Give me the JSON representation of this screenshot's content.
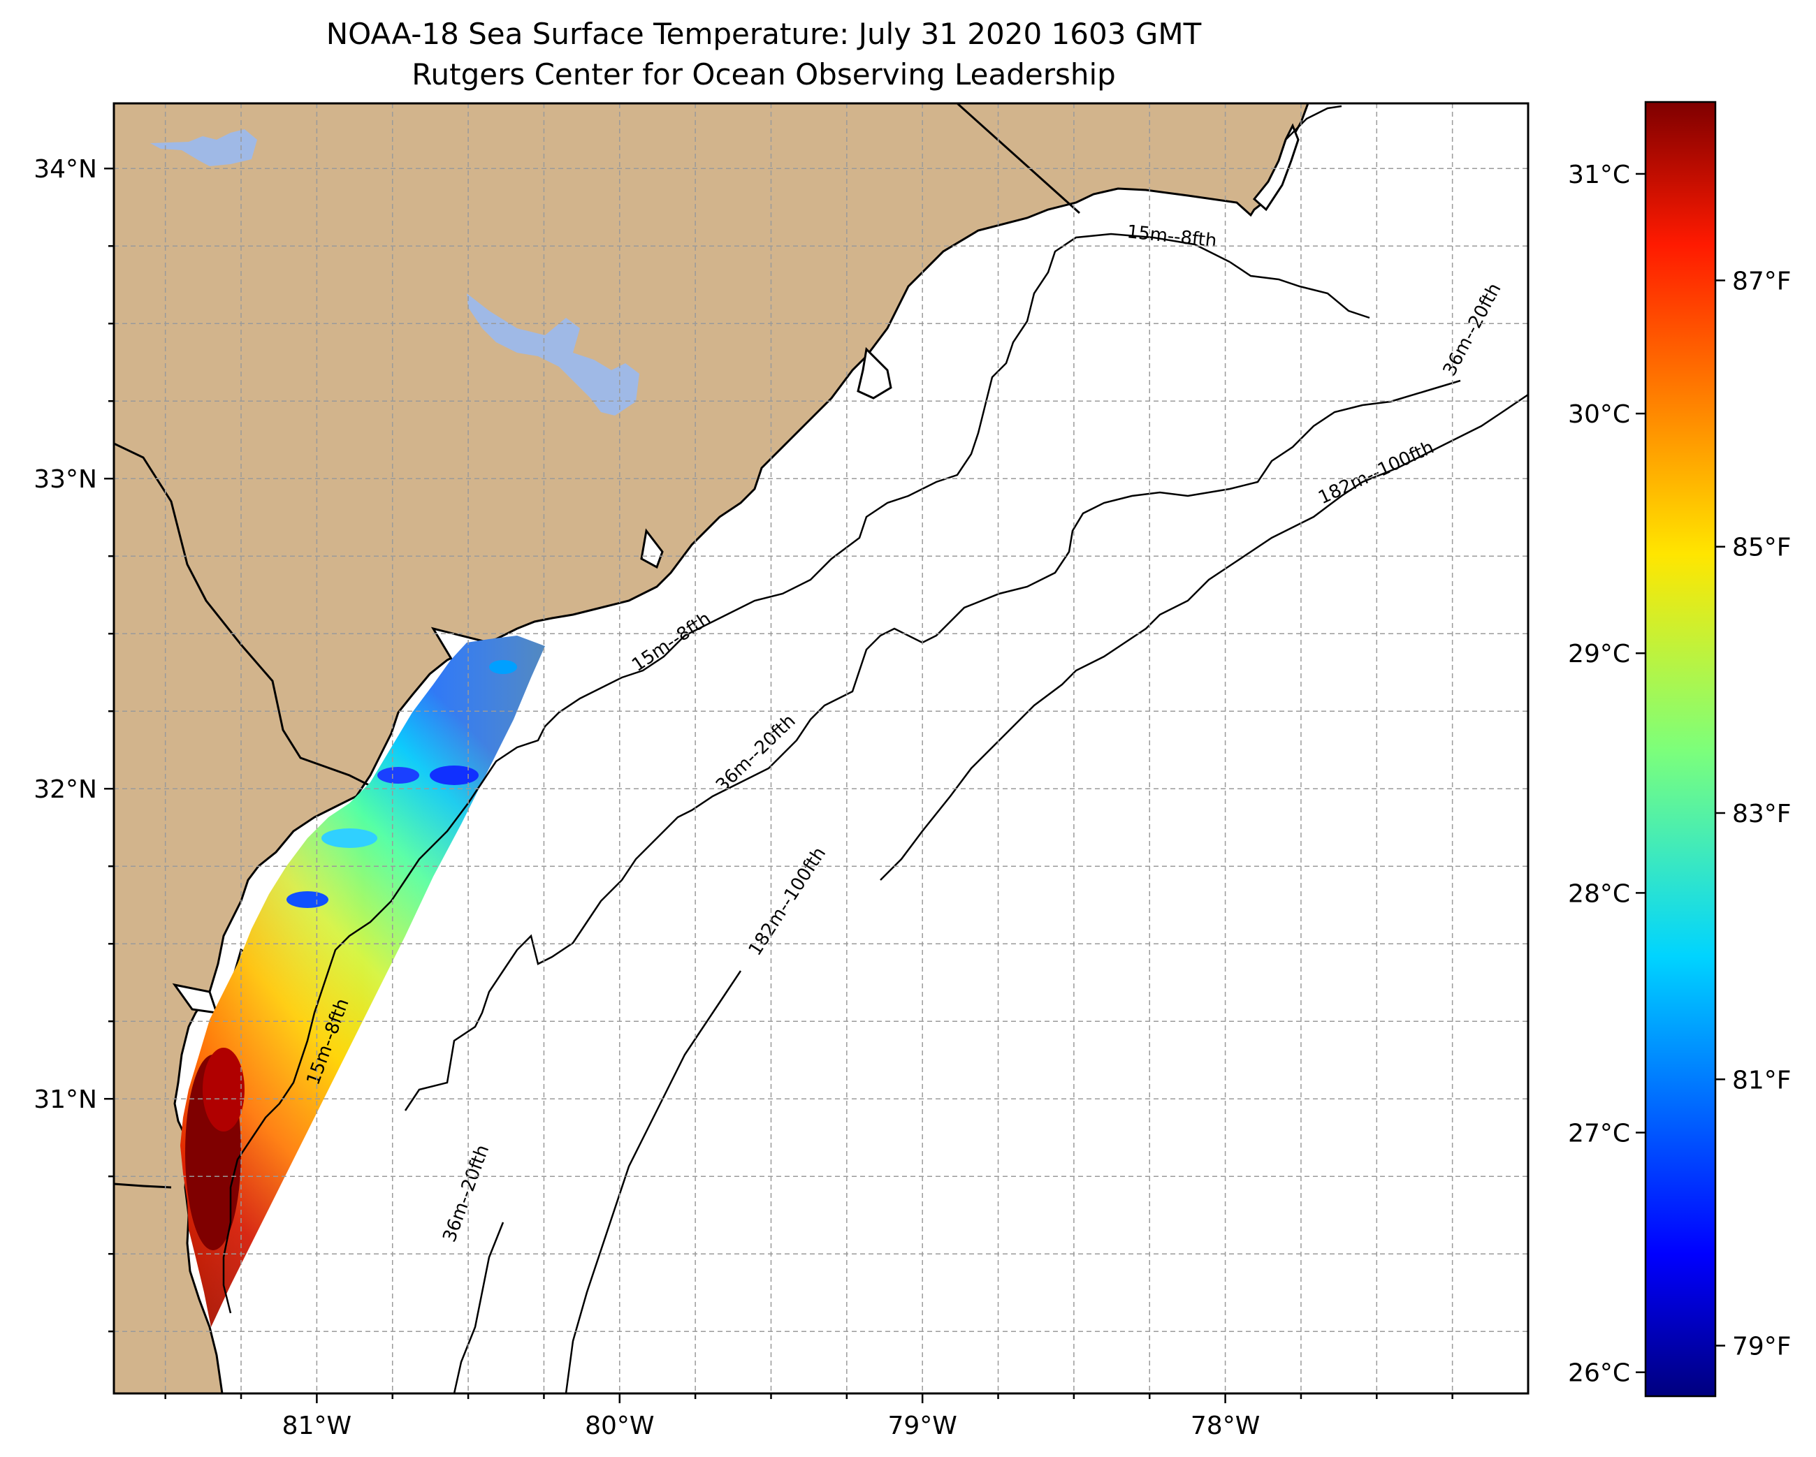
{
  "title": {
    "line1": "NOAA-18 Sea Surface Temperature: July 31 2020 1603 GMT",
    "line2": "Rutgers Center for Ocean Observing Leadership"
  },
  "map": {
    "lon_range": [
      -81.67,
      -77.0
    ],
    "lat_range": [
      30.05,
      34.21
    ],
    "land_color": "#d2b48c",
    "lake_color": "#9fb9e6",
    "ocean_color": "#ffffff",
    "gridlines": true,
    "lon_ticks": [
      {
        "value": -81,
        "label": "81°W"
      },
      {
        "value": -80,
        "label": "80°W"
      },
      {
        "value": -79,
        "label": "79°W"
      },
      {
        "value": -78,
        "label": "78°W"
      }
    ],
    "lat_ticks": [
      {
        "value": 34,
        "label": "34°N"
      },
      {
        "value": 33,
        "label": "33°N"
      },
      {
        "value": 32,
        "label": "32°N"
      },
      {
        "value": 31,
        "label": "31°N"
      }
    ],
    "contour_labels": [
      {
        "text": "15m--8fth"
      },
      {
        "text": "15m--8fth"
      },
      {
        "text": "15m--8fth"
      },
      {
        "text": "36m--20fth"
      },
      {
        "text": "36m--20fth"
      },
      {
        "text": "36m--20fth"
      },
      {
        "text": "182m--100fth"
      },
      {
        "text": "182m--100fth"
      }
    ]
  },
  "colorbar": {
    "colormap": "jet",
    "range_c": [
      25.9,
      31.3
    ],
    "celsius_ticks": [
      {
        "value": 26,
        "label": "26°C"
      },
      {
        "value": 27,
        "label": "27°C"
      },
      {
        "value": 28,
        "label": "28°C"
      },
      {
        "value": 29,
        "label": "29°C"
      },
      {
        "value": 30,
        "label": "30°C"
      },
      {
        "value": 31,
        "label": "31°C"
      }
    ],
    "fahrenheit_ticks": [
      {
        "value": 79,
        "label": "79°F"
      },
      {
        "value": 81,
        "label": "81°F"
      },
      {
        "value": 83,
        "label": "83°F"
      },
      {
        "value": 85,
        "label": "85°F"
      },
      {
        "value": 87,
        "label": "87°F"
      }
    ]
  }
}
